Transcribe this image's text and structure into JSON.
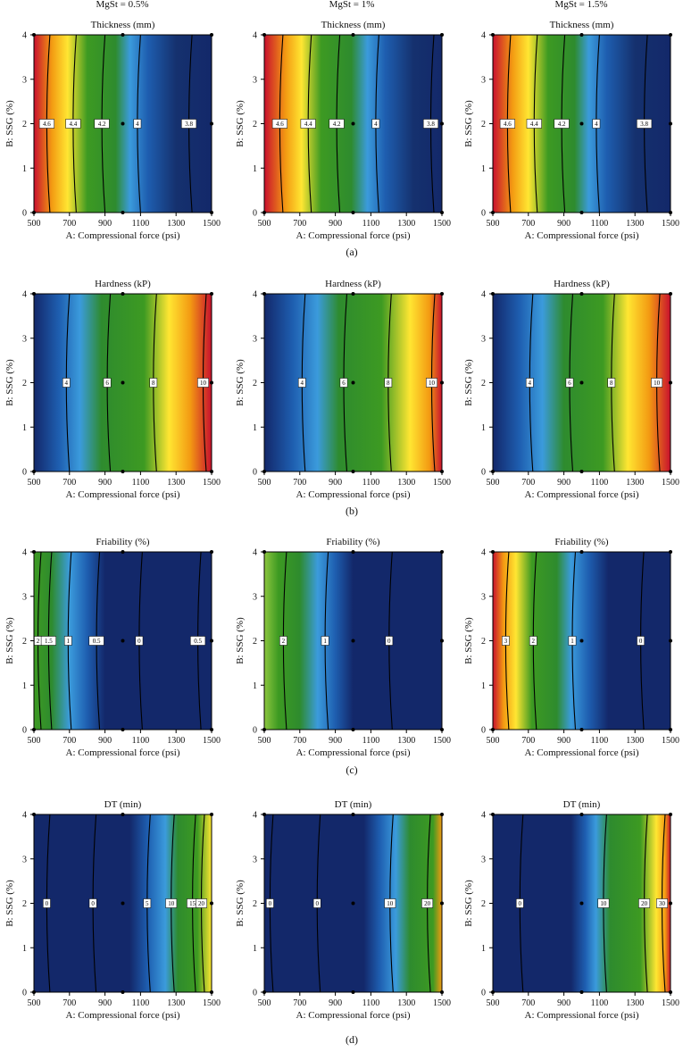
{
  "figure": {
    "column_headers": [
      "MgSt = 0.5%",
      "MgSt = 1%",
      "MgSt = 1.5%"
    ],
    "panel_labels": [
      "(a)",
      "(b)",
      "(c)",
      "(d)"
    ]
  },
  "chart_data": [
    {
      "type": "heatmap",
      "title": "Thickness (mm)",
      "xlabel": "A: Compressional force (psi)",
      "ylabel": "B: SSG (%)",
      "xlim": [
        500,
        1500
      ],
      "ylim": [
        0,
        4
      ],
      "xticks": [
        500,
        700,
        900,
        1100,
        1300,
        1500
      ],
      "yticks": [
        0,
        1,
        2,
        3,
        4
      ],
      "mgst": "0.5%",
      "contours": [
        {
          "label": "4.6",
          "x": 590
        },
        {
          "label": "4.4",
          "x": 738
        },
        {
          "label": "4.2",
          "x": 900
        },
        {
          "label": "4",
          "x": 1100
        },
        {
          "label": "3.8",
          "x": 1390
        }
      ],
      "color_stops": [
        [
          500,
          "#c8102e"
        ],
        [
          600,
          "#f39a12"
        ],
        [
          690,
          "#ffe632"
        ],
        [
          800,
          "#3d9a22"
        ],
        [
          960,
          "#2e8b2e"
        ],
        [
          1040,
          "#3b9bdc"
        ],
        [
          1140,
          "#1e5eb0"
        ],
        [
          1300,
          "#15316e"
        ],
        [
          1500,
          "#13286a"
        ]
      ]
    },
    {
      "type": "heatmap",
      "title": "Thickness (mm)",
      "xlabel": "A: Compressional force (psi)",
      "ylabel": "B: SSG (%)",
      "xlim": [
        500,
        1500
      ],
      "ylim": [
        0,
        4
      ],
      "xticks": [
        500,
        700,
        900,
        1100,
        1300,
        1500
      ],
      "yticks": [
        0,
        1,
        2,
        3,
        4
      ],
      "mgst": "1%",
      "contours": [
        {
          "label": "4.6",
          "x": 605
        },
        {
          "label": "4.4",
          "x": 765
        },
        {
          "label": "4.2",
          "x": 925
        },
        {
          "label": "4",
          "x": 1145
        },
        {
          "label": "3.8",
          "x": 1455
        }
      ],
      "color_stops": [
        [
          500,
          "#c8102e"
        ],
        [
          620,
          "#f39a12"
        ],
        [
          710,
          "#ffe632"
        ],
        [
          820,
          "#3d9a22"
        ],
        [
          990,
          "#2e8b2e"
        ],
        [
          1080,
          "#3b9bdc"
        ],
        [
          1180,
          "#1e5eb0"
        ],
        [
          1340,
          "#15316e"
        ],
        [
          1500,
          "#13286a"
        ]
      ]
    },
    {
      "type": "heatmap",
      "title": "Thickness (mm)",
      "xlabel": "A: Compressional force (psi)",
      "ylabel": "B: SSG (%)",
      "xlim": [
        500,
        1500
      ],
      "ylim": [
        0,
        4
      ],
      "xticks": [
        500,
        700,
        900,
        1100,
        1300,
        1500
      ],
      "yticks": [
        0,
        1,
        2,
        3,
        4
      ],
      "mgst": "1.5%",
      "contours": [
        {
          "label": "4.6",
          "x": 600
        },
        {
          "label": "4.4",
          "x": 750
        },
        {
          "label": "4.2",
          "x": 905
        },
        {
          "label": "4",
          "x": 1100
        },
        {
          "label": "3.8",
          "x": 1370
        }
      ],
      "color_stops": [
        [
          500,
          "#c8102e"
        ],
        [
          610,
          "#f39a12"
        ],
        [
          700,
          "#ffe632"
        ],
        [
          810,
          "#3d9a22"
        ],
        [
          960,
          "#2e8b2e"
        ],
        [
          1040,
          "#3b9bdc"
        ],
        [
          1140,
          "#1e5eb0"
        ],
        [
          1300,
          "#15316e"
        ],
        [
          1500,
          "#13286a"
        ]
      ]
    },
    {
      "type": "heatmap",
      "title": "Hardness (kP)",
      "xlabel": "A: Compressional force (psi)",
      "ylabel": "B: SSG (%)",
      "xlim": [
        500,
        1500
      ],
      "ylim": [
        0,
        4
      ],
      "xticks": [
        500,
        700,
        900,
        1100,
        1300,
        1500
      ],
      "yticks": [
        0,
        1,
        2,
        3,
        4
      ],
      "mgst": "0.5%",
      "contours": [
        {
          "label": "4",
          "x": 700
        },
        {
          "label": "6",
          "x": 930
        },
        {
          "label": "8",
          "x": 1190
        },
        {
          "label": "10",
          "x": 1470
        }
      ],
      "color_stops": [
        [
          500,
          "#13286a"
        ],
        [
          640,
          "#1e5eb0"
        ],
        [
          760,
          "#3b9bdc"
        ],
        [
          880,
          "#2e8b2e"
        ],
        [
          1120,
          "#3d9a22"
        ],
        [
          1260,
          "#ffe632"
        ],
        [
          1380,
          "#f39a12"
        ],
        [
          1500,
          "#c8102e"
        ]
      ]
    },
    {
      "type": "heatmap",
      "title": "Hardness (kP)",
      "xlabel": "A: Compressional force (psi)",
      "ylabel": "B: SSG (%)",
      "xlim": [
        500,
        1500
      ],
      "ylim": [
        0,
        4
      ],
      "xticks": [
        500,
        700,
        900,
        1100,
        1300,
        1500
      ],
      "yticks": [
        0,
        1,
        2,
        3,
        4
      ],
      "mgst": "1%",
      "contours": [
        {
          "label": "4",
          "x": 730
        },
        {
          "label": "6",
          "x": 965
        },
        {
          "label": "8",
          "x": 1215
        },
        {
          "label": "10",
          "x": 1460
        }
      ],
      "color_stops": [
        [
          500,
          "#13286a"
        ],
        [
          660,
          "#1e5eb0"
        ],
        [
          800,
          "#3b9bdc"
        ],
        [
          920,
          "#2e8b2e"
        ],
        [
          1160,
          "#3d9a22"
        ],
        [
          1320,
          "#ffe632"
        ],
        [
          1430,
          "#f39a12"
        ],
        [
          1500,
          "#c8102e"
        ]
      ]
    },
    {
      "type": "heatmap",
      "title": "Hardness (kP)",
      "xlabel": "A: Compressional force (psi)",
      "ylabel": "B: SSG (%)",
      "xlim": [
        500,
        1500
      ],
      "ylim": [
        0,
        4
      ],
      "xticks": [
        500,
        700,
        900,
        1100,
        1300,
        1500
      ],
      "yticks": [
        0,
        1,
        2,
        3,
        4
      ],
      "mgst": "1.5%",
      "contours": [
        {
          "label": "4",
          "x": 725
        },
        {
          "label": "6",
          "x": 950
        },
        {
          "label": "8",
          "x": 1185
        },
        {
          "label": "10",
          "x": 1440
        }
      ],
      "color_stops": [
        [
          500,
          "#13286a"
        ],
        [
          650,
          "#1e5eb0"
        ],
        [
          780,
          "#3b9bdc"
        ],
        [
          900,
          "#2e8b2e"
        ],
        [
          1120,
          "#3d9a22"
        ],
        [
          1260,
          "#ffe632"
        ],
        [
          1380,
          "#f39a12"
        ],
        [
          1500,
          "#c8102e"
        ]
      ]
    },
    {
      "type": "heatmap",
      "title": "Friability (%)",
      "xlabel": "A: Compressional force (psi)",
      "ylabel": "B: SSG (%)",
      "xlim": [
        500,
        1500
      ],
      "ylim": [
        0,
        4
      ],
      "xticks": [
        500,
        700,
        900,
        1100,
        1300,
        1500
      ],
      "yticks": [
        0,
        1,
        2,
        3,
        4
      ],
      "mgst": "0.5%",
      "contours": [
        {
          "label": "2",
          "x": 540
        },
        {
          "label": "1.5",
          "x": 600
        },
        {
          "label": "1",
          "x": 710
        },
        {
          "label": "0.5",
          "x": 870
        },
        {
          "label": "0",
          "x": 1110
        },
        {
          "label": "0.5",
          "x": 1440
        }
      ],
      "color_stops": [
        [
          500,
          "#3d9a22"
        ],
        [
          600,
          "#2e8b2e"
        ],
        [
          700,
          "#3b9bdc"
        ],
        [
          800,
          "#1e5eb0"
        ],
        [
          900,
          "#13286a"
        ],
        [
          1500,
          "#13286a"
        ]
      ]
    },
    {
      "type": "heatmap",
      "title": "Friability (%)",
      "xlabel": "A: Compressional force (psi)",
      "ylabel": "B: SSG (%)",
      "xlim": [
        500,
        1500
      ],
      "ylim": [
        0,
        4
      ],
      "xticks": [
        500,
        700,
        900,
        1100,
        1300,
        1500
      ],
      "yticks": [
        0,
        1,
        2,
        3,
        4
      ],
      "mgst": "1%",
      "contours": [
        {
          "label": "2",
          "x": 625
        },
        {
          "label": "1",
          "x": 860
        },
        {
          "label": "0",
          "x": 1220
        }
      ],
      "color_stops": [
        [
          500,
          "#8dc63f"
        ],
        [
          580,
          "#3d9a22"
        ],
        [
          700,
          "#2e8b2e"
        ],
        [
          800,
          "#3b9bdc"
        ],
        [
          900,
          "#1e5eb0"
        ],
        [
          1000,
          "#13286a"
        ],
        [
          1500,
          "#13286a"
        ]
      ]
    },
    {
      "type": "heatmap",
      "title": "Friability (%)",
      "xlabel": "A: Compressional force (psi)",
      "ylabel": "B: SSG (%)",
      "xlim": [
        500,
        1500
      ],
      "ylim": [
        0,
        4
      ],
      "xticks": [
        500,
        700,
        900,
        1100,
        1300,
        1500
      ],
      "yticks": [
        0,
        1,
        2,
        3,
        4
      ],
      "mgst": "1.5%",
      "contours": [
        {
          "label": "3",
          "x": 590
        },
        {
          "label": "2",
          "x": 745
        },
        {
          "label": "1",
          "x": 965
        },
        {
          "label": "0",
          "x": 1350
        }
      ],
      "color_stops": [
        [
          500,
          "#c8102e"
        ],
        [
          560,
          "#f39a12"
        ],
        [
          630,
          "#ffe632"
        ],
        [
          720,
          "#3d9a22"
        ],
        [
          860,
          "#2e8b2e"
        ],
        [
          940,
          "#3b9bdc"
        ],
        [
          1040,
          "#1e5eb0"
        ],
        [
          1150,
          "#13286a"
        ],
        [
          1500,
          "#13286a"
        ]
      ]
    },
    {
      "type": "heatmap",
      "title": "DT (min)",
      "xlabel": "A: Compressional force (psi)",
      "ylabel": "B: SSG (%)",
      "xlim": [
        500,
        1500
      ],
      "ylim": [
        0,
        4
      ],
      "xticks": [
        500,
        700,
        900,
        1100,
        1300,
        1500
      ],
      "yticks": [
        0,
        1,
        2,
        3,
        4
      ],
      "mgst": "0.5%",
      "contours": [
        {
          "label": "0",
          "x": 590
        },
        {
          "label": "0",
          "x": 850
        },
        {
          "label": "5",
          "x": 1155
        },
        {
          "label": "10",
          "x": 1290
        },
        {
          "label": "15",
          "x": 1410
        },
        {
          "label": "20",
          "x": 1460
        }
      ],
      "color_stops": [
        [
          500,
          "#13286a"
        ],
        [
          1040,
          "#13286a"
        ],
        [
          1140,
          "#1e5eb0"
        ],
        [
          1240,
          "#3b9bdc"
        ],
        [
          1310,
          "#2e8b2e"
        ],
        [
          1420,
          "#3d9a22"
        ],
        [
          1500,
          "#ffe632"
        ]
      ]
    },
    {
      "type": "heatmap",
      "title": "DT (min)",
      "xlabel": "A: Compressional force (psi)",
      "ylabel": "B: SSG (%)",
      "xlim": [
        500,
        1500
      ],
      "ylim": [
        0,
        4
      ],
      "xticks": [
        500,
        700,
        900,
        1100,
        1300,
        1500
      ],
      "yticks": [
        0,
        1,
        2,
        3,
        4
      ],
      "mgst": "1%",
      "contours": [
        {
          "label": "0",
          "x": 550
        },
        {
          "label": "0",
          "x": 815
        },
        {
          "label": "10",
          "x": 1225
        },
        {
          "label": "20",
          "x": 1435
        }
      ],
      "color_stops": [
        [
          500,
          "#13286a"
        ],
        [
          1060,
          "#13286a"
        ],
        [
          1150,
          "#1e5eb0"
        ],
        [
          1240,
          "#3b9bdc"
        ],
        [
          1320,
          "#2e8b2e"
        ],
        [
          1450,
          "#3d9a22"
        ],
        [
          1500,
          "#f39a12"
        ]
      ]
    },
    {
      "type": "heatmap",
      "title": "DT (min)",
      "xlabel": "A: Compressional force (psi)",
      "ylabel": "B: SSG (%)",
      "xlim": [
        500,
        1500
      ],
      "ylim": [
        0,
        4
      ],
      "xticks": [
        500,
        700,
        900,
        1100,
        1300,
        1500
      ],
      "yticks": [
        0,
        1,
        2,
        3,
        4
      ],
      "mgst": "1.5%",
      "contours": [
        {
          "label": "0",
          "x": 670
        },
        {
          "label": "10",
          "x": 1140
        },
        {
          "label": "20",
          "x": 1370
        },
        {
          "label": "30",
          "x": 1470
        }
      ],
      "color_stops": [
        [
          500,
          "#13286a"
        ],
        [
          940,
          "#13286a"
        ],
        [
          1020,
          "#1e5eb0"
        ],
        [
          1080,
          "#3b9bdc"
        ],
        [
          1160,
          "#2e8b2e"
        ],
        [
          1330,
          "#3d9a22"
        ],
        [
          1420,
          "#ffe632"
        ],
        [
          1470,
          "#f39a12"
        ],
        [
          1500,
          "#c8102e"
        ]
      ]
    }
  ]
}
